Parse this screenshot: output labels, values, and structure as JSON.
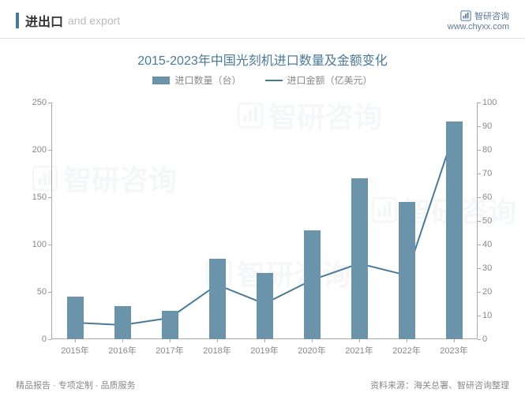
{
  "header": {
    "title_cn": "进出口",
    "title_en": "and export",
    "brand": "智研咨询",
    "url": "www.chyxx.com"
  },
  "chart": {
    "type": "bar+line",
    "title": "2015-2023年中国光刻机进口数量及金额变化",
    "title_color": "#4a7a9a",
    "title_fontsize": 16,
    "legend": {
      "bar_label": "进口数量（台）",
      "line_label": "进口金额（亿美元）"
    },
    "categories": [
      "2015年",
      "2016年",
      "2017年",
      "2018年",
      "2019年",
      "2020年",
      "2021年",
      "2022年",
      "2023年"
    ],
    "bar_values": [
      45,
      35,
      30,
      85,
      70,
      115,
      170,
      145,
      230
    ],
    "line_values": [
      7,
      6,
      9,
      23,
      15,
      25,
      32,
      27,
      87
    ],
    "bar_color": "#6b94aa",
    "line_color": "#4a7a9a",
    "line_width": 2,
    "left_axis": {
      "min": 0,
      "max": 250,
      "step": 50
    },
    "right_axis": {
      "min": 0,
      "max": 100,
      "step": 10
    },
    "bar_width_ratio": 0.35,
    "background_color": "#ffffff",
    "grid_color": "#dddddd",
    "axis_color": "#aaaaaa",
    "tick_fontsize": 11,
    "tick_color": "#888888"
  },
  "footer": {
    "left": "精品报告 · 专项定制 · 品质服务",
    "right": "资料来源：海关总署、智研咨询整理"
  },
  "watermark_text": "智研咨询"
}
